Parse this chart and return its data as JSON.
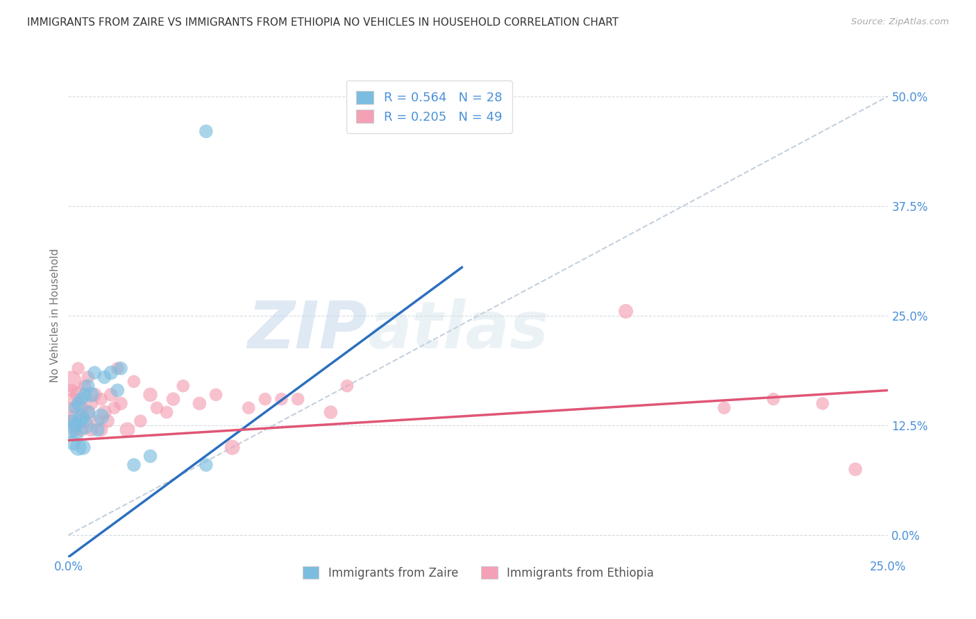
{
  "title": "IMMIGRANTS FROM ZAIRE VS IMMIGRANTS FROM ETHIOPIA NO VEHICLES IN HOUSEHOLD CORRELATION CHART",
  "source": "Source: ZipAtlas.com",
  "xlabel_blue": "Immigrants from Zaire",
  "xlabel_pink": "Immigrants from Ethiopia",
  "ylabel": "No Vehicles in Household",
  "R_blue": 0.564,
  "N_blue": 28,
  "R_pink": 0.205,
  "N_pink": 49,
  "color_blue": "#7bbde0",
  "color_pink": "#f4a0b5",
  "line_color_blue": "#2b6fbf",
  "line_color_pink": "#e05575",
  "color_ref_line": "#b8c8d8",
  "watermark_zip": "ZIP",
  "watermark_atlas": "atlas",
  "xmin": 0.0,
  "xmax": 0.25,
  "ymin": -0.025,
  "ymax": 0.525,
  "blue_x": [
    0.0008,
    0.001,
    0.0015,
    0.002,
    0.002,
    0.0025,
    0.003,
    0.003,
    0.0035,
    0.004,
    0.004,
    0.0045,
    0.005,
    0.005,
    0.006,
    0.006,
    0.007,
    0.008,
    0.009,
    0.01,
    0.011,
    0.013,
    0.015,
    0.016,
    0.02,
    0.025,
    0.042,
    0.042
  ],
  "blue_y": [
    0.12,
    0.13,
    0.105,
    0.125,
    0.145,
    0.115,
    0.1,
    0.15,
    0.13,
    0.135,
    0.155,
    0.1,
    0.125,
    0.16,
    0.14,
    0.17,
    0.16,
    0.185,
    0.12,
    0.135,
    0.18,
    0.185,
    0.165,
    0.19,
    0.08,
    0.09,
    0.46,
    0.08
  ],
  "blue_sizes": [
    300,
    200,
    250,
    220,
    180,
    200,
    300,
    200,
    250,
    280,
    200,
    250,
    350,
    200,
    220,
    200,
    250,
    200,
    200,
    280,
    200,
    220,
    200,
    200,
    200,
    200,
    200,
    200
  ],
  "pink_x": [
    0.0005,
    0.0008,
    0.001,
    0.001,
    0.0015,
    0.002,
    0.002,
    0.003,
    0.003,
    0.004,
    0.004,
    0.005,
    0.005,
    0.006,
    0.006,
    0.007,
    0.007,
    0.008,
    0.009,
    0.01,
    0.01,
    0.011,
    0.012,
    0.013,
    0.014,
    0.015,
    0.016,
    0.018,
    0.02,
    0.022,
    0.025,
    0.027,
    0.03,
    0.032,
    0.035,
    0.04,
    0.045,
    0.05,
    0.055,
    0.06,
    0.065,
    0.07,
    0.08,
    0.085,
    0.17,
    0.2,
    0.215,
    0.23,
    0.24
  ],
  "pink_y": [
    0.145,
    0.175,
    0.13,
    0.165,
    0.155,
    0.135,
    0.12,
    0.16,
    0.19,
    0.12,
    0.145,
    0.13,
    0.17,
    0.14,
    0.18,
    0.15,
    0.12,
    0.16,
    0.13,
    0.12,
    0.155,
    0.14,
    0.13,
    0.16,
    0.145,
    0.19,
    0.15,
    0.12,
    0.175,
    0.13,
    0.16,
    0.145,
    0.14,
    0.155,
    0.17,
    0.15,
    0.16,
    0.1,
    0.145,
    0.155,
    0.155,
    0.155,
    0.14,
    0.17,
    0.255,
    0.145,
    0.155,
    0.15,
    0.075
  ],
  "pink_sizes": [
    150,
    500,
    200,
    180,
    200,
    250,
    200,
    280,
    180,
    200,
    200,
    250,
    180,
    220,
    180,
    200,
    200,
    220,
    180,
    200,
    180,
    220,
    200,
    200,
    180,
    180,
    200,
    250,
    180,
    180,
    220,
    180,
    180,
    200,
    180,
    200,
    180,
    250,
    180,
    180,
    180,
    180,
    200,
    180,
    230,
    180,
    180,
    180,
    200
  ],
  "blue_trendline_x0": 0.0,
  "blue_trendline_y0": -0.025,
  "blue_trendline_x1": 0.12,
  "blue_trendline_y1": 0.305,
  "pink_trendline_x0": 0.0,
  "pink_trendline_y0": 0.108,
  "pink_trendline_x1": 0.25,
  "pink_trendline_y1": 0.165,
  "ytick_labels": [
    "0.0%",
    "12.5%",
    "25.0%",
    "37.5%",
    "50.0%"
  ],
  "ytick_values": [
    0.0,
    0.125,
    0.25,
    0.375,
    0.5
  ],
  "xtick_labels": [
    "0.0%",
    "25.0%"
  ],
  "xtick_values": [
    0.0,
    0.25
  ],
  "text_color_axis": "#4a90d9",
  "label_fontsize": 12,
  "title_fontsize": 11,
  "legend_fontsize": 13
}
